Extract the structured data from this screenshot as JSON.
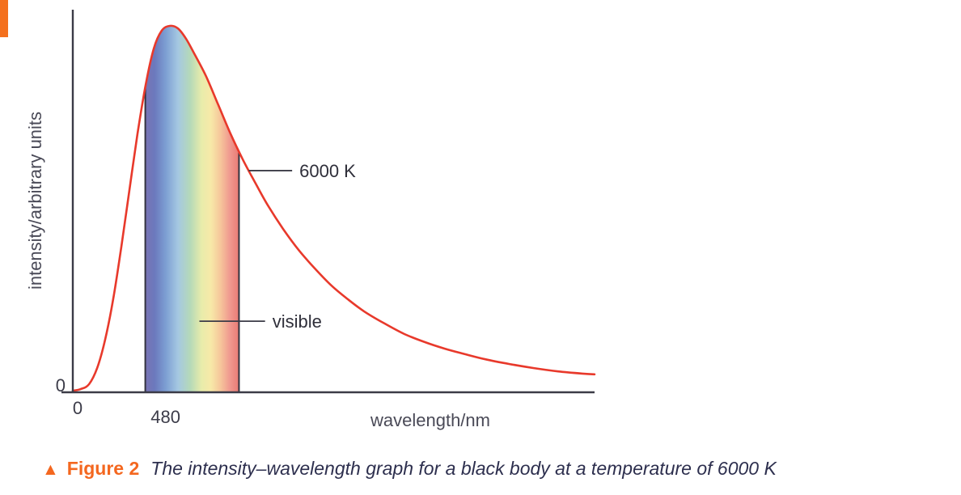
{
  "caption": {
    "triangle_icon": "▲",
    "figure_label": "Figure 2",
    "text": "The intensity–wavelength graph for a black body at a temperature of 6000 K",
    "label_color": "#f4671f",
    "text_color": "#2d2f4e"
  },
  "chart_data": {
    "type": "line",
    "title": "",
    "xlabel": "wavelength/nm",
    "ylabel": "intensity/arbitrary units",
    "x_origin_label": "0",
    "y_origin_label": "0",
    "x_tick_label": "480",
    "x_tick_nm": 480,
    "xlim_nm": [
      0,
      2700
    ],
    "ylim": [
      0,
      1.05
    ],
    "visible_band_nm": [
      375,
      860
    ],
    "curve_color": "#e8392b",
    "axis_color": "#3b3b47",
    "band_edge_color": "#33333f",
    "series": [
      {
        "name": "black body at 6000 K",
        "points": [
          [
            0,
            0.004
          ],
          [
            42,
            0.009
          ],
          [
            84,
            0.022
          ],
          [
            126,
            0.066
          ],
          [
            167,
            0.143
          ],
          [
            209,
            0.254
          ],
          [
            251,
            0.397
          ],
          [
            293,
            0.552
          ],
          [
            335,
            0.706
          ],
          [
            377,
            0.839
          ],
          [
            419,
            0.938
          ],
          [
            460,
            0.987
          ],
          [
            502,
            1.0
          ],
          [
            544,
            0.993
          ],
          [
            586,
            0.965
          ],
          [
            628,
            0.925
          ],
          [
            691,
            0.861
          ],
          [
            753,
            0.784
          ],
          [
            816,
            0.706
          ],
          [
            879,
            0.636
          ],
          [
            942,
            0.574
          ],
          [
            1005,
            0.514
          ],
          [
            1088,
            0.446
          ],
          [
            1172,
            0.386
          ],
          [
            1256,
            0.336
          ],
          [
            1339,
            0.291
          ],
          [
            1423,
            0.254
          ],
          [
            1507,
            0.221
          ],
          [
            1612,
            0.188
          ],
          [
            1716,
            0.159
          ],
          [
            1821,
            0.137
          ],
          [
            1925,
            0.119
          ],
          [
            2030,
            0.104
          ],
          [
            2135,
            0.09
          ],
          [
            2260,
            0.077
          ],
          [
            2386,
            0.066
          ],
          [
            2511,
            0.057
          ],
          [
            2637,
            0.051
          ],
          [
            2700,
            0.049
          ]
        ]
      }
    ],
    "visible_gradient": [
      {
        "offset": 0.0,
        "color": "#7a74b4"
      },
      {
        "offset": 0.1,
        "color": "#6b79bd"
      },
      {
        "offset": 0.22,
        "color": "#7d9fd3"
      },
      {
        "offset": 0.35,
        "color": "#a5c8e2"
      },
      {
        "offset": 0.48,
        "color": "#b5d9b8"
      },
      {
        "offset": 0.6,
        "color": "#e8ecab"
      },
      {
        "offset": 0.7,
        "color": "#f7e9a8"
      },
      {
        "offset": 0.8,
        "color": "#f6c79b"
      },
      {
        "offset": 0.9,
        "color": "#f09a90"
      },
      {
        "offset": 1.0,
        "color": "#e97a74"
      }
    ],
    "annotations": [
      {
        "id": "temperature",
        "label": "6000 K",
        "y_intensity": 0.605,
        "x1_nm": 910,
        "x2_nm": 1135
      },
      {
        "id": "visible",
        "label": "visible",
        "y_intensity": 0.194,
        "x1_nm": 655,
        "x2_nm": 995
      }
    ]
  }
}
